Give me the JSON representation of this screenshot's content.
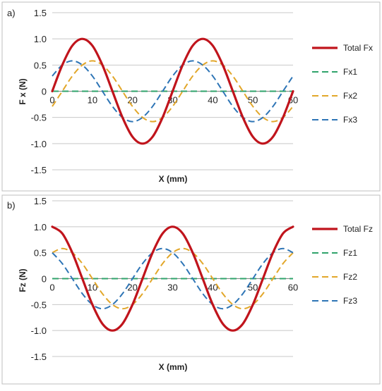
{
  "chart_data": [
    {
      "type": "line",
      "panel_label": "a)",
      "title": "",
      "xlabel": "X (mm)",
      "ylabel": "F x (N)",
      "xlim": [
        0,
        60
      ],
      "ylim": [
        -1.5,
        1.5
      ],
      "x_ticks": [
        "0",
        "10",
        "20",
        "30",
        "40",
        "50",
        "60"
      ],
      "y_ticks": [
        "1.5",
        "1.0",
        "0.5",
        "0",
        "-0.5",
        "-1.0",
        "-1.5"
      ],
      "grid": true,
      "legend_position": "right",
      "x": [
        0,
        2.5,
        5,
        7.5,
        10,
        12.5,
        15,
        17.5,
        20,
        22.5,
        25,
        27.5,
        30,
        32.5,
        35,
        37.5,
        40,
        42.5,
        45,
        47.5,
        50,
        52.5,
        55,
        57.5,
        60
      ],
      "series": [
        {
          "name": "Total Fx",
          "color": "#c0141c",
          "style": "solid",
          "values": [
            0,
            0.5,
            0.87,
            1.0,
            0.87,
            0.5,
            0,
            -0.5,
            -0.87,
            -1.0,
            -0.87,
            -0.5,
            0,
            0.5,
            0.87,
            1.0,
            0.87,
            0.5,
            0,
            -0.5,
            -0.87,
            -1.0,
            -0.87,
            -0.5,
            0
          ]
        },
        {
          "name": "Fx1",
          "color": "#2fa36b",
          "style": "dashed",
          "values": [
            0,
            0,
            0,
            0,
            0,
            0,
            0,
            0,
            0,
            0,
            0,
            0,
            0,
            0,
            0,
            0,
            0,
            0,
            0,
            0,
            0,
            0,
            0,
            0,
            0
          ]
        },
        {
          "name": "Fx2",
          "color": "#e2a72a",
          "style": "dashed",
          "values": [
            -0.29,
            0,
            0.29,
            0.5,
            0.58,
            0.5,
            0.29,
            0,
            -0.29,
            -0.5,
            -0.58,
            -0.5,
            -0.29,
            0,
            0.29,
            0.5,
            0.58,
            0.5,
            0.29,
            0,
            -0.29,
            -0.5,
            -0.58,
            -0.5,
            -0.29
          ]
        },
        {
          "name": "Fx3",
          "color": "#2e75b6",
          "style": "dashed",
          "values": [
            0.29,
            0.5,
            0.58,
            0.5,
            0.29,
            0,
            -0.29,
            -0.5,
            -0.58,
            -0.5,
            -0.29,
            0,
            0.29,
            0.5,
            0.58,
            0.5,
            0.29,
            0,
            -0.29,
            -0.5,
            -0.58,
            -0.5,
            -0.29,
            0,
            0.29
          ]
        }
      ]
    },
    {
      "type": "line",
      "panel_label": "b)",
      "title": "",
      "xlabel": "X (mm)",
      "ylabel": "Fz (N)",
      "xlim": [
        0,
        60
      ],
      "ylim": [
        -1.5,
        1.5
      ],
      "x_ticks": [
        "0",
        "10",
        "20",
        "30",
        "40",
        "50",
        "60"
      ],
      "y_ticks": [
        "1.5",
        "1.0",
        "0.5",
        "0",
        "-0.5",
        "-1.0",
        "-1.5"
      ],
      "grid": true,
      "legend_position": "right",
      "x": [
        0,
        2.5,
        5,
        7.5,
        10,
        12.5,
        15,
        17.5,
        20,
        22.5,
        25,
        27.5,
        30,
        32.5,
        35,
        37.5,
        40,
        42.5,
        45,
        47.5,
        50,
        52.5,
        55,
        57.5,
        60
      ],
      "series": [
        {
          "name": "Total Fz",
          "color": "#c0141c",
          "style": "solid",
          "values": [
            1.0,
            0.87,
            0.5,
            0,
            -0.5,
            -0.87,
            -1.0,
            -0.87,
            -0.5,
            0,
            0.5,
            0.87,
            1.0,
            0.87,
            0.5,
            0,
            -0.5,
            -0.87,
            -1.0,
            -0.87,
            -0.5,
            0,
            0.5,
            0.87,
            1.0
          ]
        },
        {
          "name": "Fz1",
          "color": "#2fa36b",
          "style": "dashed",
          "values": [
            0,
            0,
            0,
            0,
            0,
            0,
            0,
            0,
            0,
            0,
            0,
            0,
            0,
            0,
            0,
            0,
            0,
            0,
            0,
            0,
            0,
            0,
            0,
            0,
            0
          ]
        },
        {
          "name": "Fz2",
          "color": "#e2a72a",
          "style": "dashed",
          "values": [
            0.5,
            0.58,
            0.5,
            0.29,
            0,
            -0.29,
            -0.5,
            -0.58,
            -0.5,
            -0.29,
            0,
            0.29,
            0.5,
            0.58,
            0.5,
            0.29,
            0,
            -0.29,
            -0.5,
            -0.58,
            -0.5,
            -0.29,
            0,
            0.29,
            0.5
          ]
        },
        {
          "name": "Fz3",
          "color": "#2e75b6",
          "style": "dashed",
          "values": [
            0.5,
            0.29,
            0,
            -0.29,
            -0.5,
            -0.58,
            -0.5,
            -0.29,
            0,
            0.29,
            0.5,
            0.58,
            0.5,
            0.29,
            0,
            -0.29,
            -0.5,
            -0.58,
            -0.5,
            -0.29,
            0,
            0.29,
            0.5,
            0.58,
            0.5
          ]
        }
      ]
    }
  ]
}
